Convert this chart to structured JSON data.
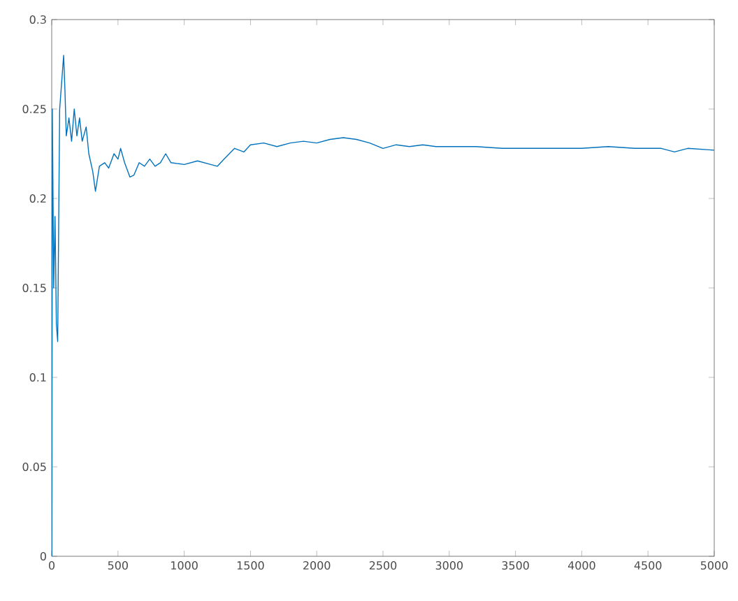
{
  "chart_data": {
    "type": "line",
    "xlim": [
      0,
      5000
    ],
    "ylim": [
      0,
      0.3
    ],
    "xticks": [
      0,
      500,
      1000,
      1500,
      2000,
      2500,
      3000,
      3500,
      4000,
      4500,
      5000
    ],
    "yticks": [
      0,
      0.05,
      0.1,
      0.15,
      0.2,
      0.25,
      0.3
    ],
    "grid": false,
    "marker": "none",
    "line_style": "solid",
    "series": [
      {
        "color": "#0072bd",
        "x": [
          1,
          5,
          15,
          25,
          35,
          45,
          60,
          80,
          90,
          100,
          110,
          130,
          150,
          170,
          190,
          210,
          230,
          260,
          280,
          310,
          330,
          360,
          400,
          430,
          470,
          500,
          520,
          550,
          590,
          620,
          660,
          700,
          740,
          780,
          820,
          860,
          900,
          1000,
          1100,
          1200,
          1250,
          1300,
          1380,
          1450,
          1500,
          1600,
          1700,
          1800,
          1900,
          2000,
          2100,
          2200,
          2300,
          2400,
          2500,
          2600,
          2700,
          2800,
          2900,
          3000,
          3200,
          3400,
          3600,
          3800,
          4000,
          4200,
          4400,
          4600,
          4700,
          4800,
          5000
        ],
        "values": [
          0,
          0.25,
          0.15,
          0.19,
          0.13,
          0.12,
          0.25,
          0.27,
          0.28,
          0.26,
          0.235,
          0.245,
          0.232,
          0.25,
          0.235,
          0.245,
          0.232,
          0.24,
          0.225,
          0.215,
          0.204,
          0.218,
          0.22,
          0.217,
          0.225,
          0.222,
          0.228,
          0.22,
          0.212,
          0.213,
          0.22,
          0.218,
          0.222,
          0.218,
          0.22,
          0.225,
          0.22,
          0.219,
          0.221,
          0.219,
          0.218,
          0.222,
          0.228,
          0.226,
          0.23,
          0.231,
          0.229,
          0.231,
          0.232,
          0.231,
          0.233,
          0.234,
          0.233,
          0.231,
          0.228,
          0.23,
          0.229,
          0.23,
          0.229,
          0.229,
          0.229,
          0.228,
          0.228,
          0.228,
          0.228,
          0.229,
          0.228,
          0.228,
          0.226,
          0.228,
          0.227
        ]
      }
    ]
  }
}
